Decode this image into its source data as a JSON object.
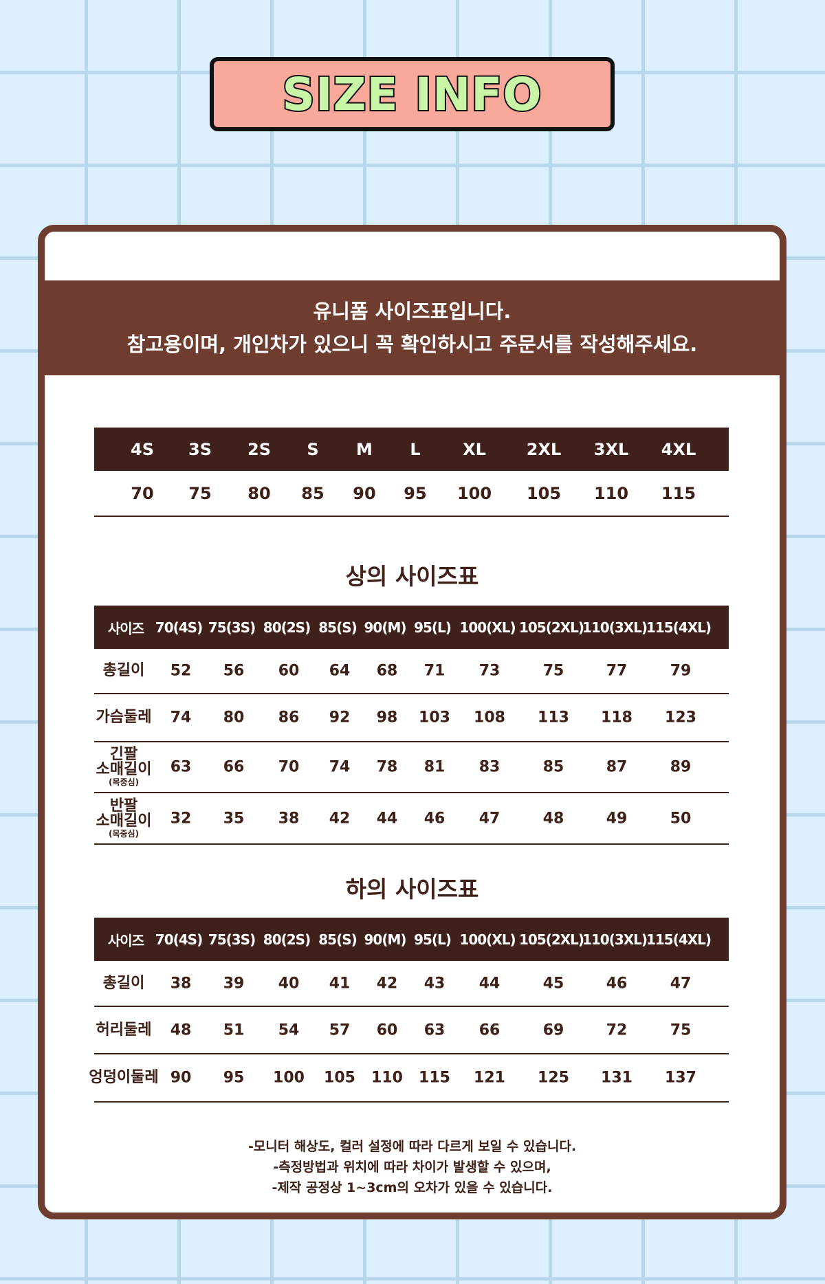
{
  "title": "SIZE INFO",
  "banner": {
    "line1": "유니폼 사이즈표입니다.",
    "line2": "참고용이며, 개인차가 있으니 꼭 확인하시고 주문서를 작성해주세요."
  },
  "size_map": {
    "labels": [
      "4S",
      "3S",
      "2S",
      "S",
      "M",
      "L",
      "XL",
      "2XL",
      "3XL",
      "4XL"
    ],
    "values": [
      "70",
      "75",
      "80",
      "85",
      "90",
      "95",
      "100",
      "105",
      "110",
      "115"
    ]
  },
  "top": {
    "heading": "상의 사이즈표",
    "header": [
      "사이즈",
      "70(4S)",
      "75(3S)",
      "80(2S)",
      "85(S)",
      "90(M)",
      "95(L)",
      "100(XL)",
      "105(2XL)",
      "110(3XL)",
      "115(4XL)"
    ],
    "rows": [
      {
        "label": "총길이",
        "sub": "",
        "values": [
          "52",
          "56",
          "60",
          "64",
          "68",
          "71",
          "73",
          "75",
          "77",
          "79"
        ]
      },
      {
        "label": "가슴둘레",
        "sub": "",
        "values": [
          "74",
          "80",
          "86",
          "92",
          "98",
          "103",
          "108",
          "113",
          "118",
          "123"
        ]
      },
      {
        "label": "긴팔\n소매길이",
        "sub": "(목중심)",
        "values": [
          "63",
          "66",
          "70",
          "74",
          "78",
          "81",
          "83",
          "85",
          "87",
          "89"
        ]
      },
      {
        "label": "반팔\n소매길이",
        "sub": "(목중심)",
        "values": [
          "32",
          "35",
          "38",
          "42",
          "44",
          "46",
          "47",
          "48",
          "49",
          "50"
        ]
      }
    ]
  },
  "bottom": {
    "heading": "하의 사이즈표",
    "header": [
      "사이즈",
      "70(4S)",
      "75(3S)",
      "80(2S)",
      "85(S)",
      "90(M)",
      "95(L)",
      "100(XL)",
      "105(2XL)",
      "110(3XL)",
      "115(4XL)"
    ],
    "rows": [
      {
        "label": "총길이",
        "sub": "",
        "values": [
          "38",
          "39",
          "40",
          "41",
          "42",
          "43",
          "44",
          "45",
          "46",
          "47"
        ]
      },
      {
        "label": "허리둘레",
        "sub": "",
        "values": [
          "48",
          "51",
          "54",
          "57",
          "60",
          "63",
          "66",
          "69",
          "72",
          "75"
        ]
      },
      {
        "label": "엉덩이둘레",
        "sub": "",
        "values": [
          "90",
          "95",
          "100",
          "105",
          "110",
          "115",
          "121",
          "125",
          "131",
          "137"
        ]
      }
    ]
  },
  "notes": [
    "-모니터 해상도, 컬러 설정에 따라 다르게 보일 수 있습니다.",
    "-측정방법과 위치에 따라 차이가 발생할 수 있으며,",
    "-제작 공정상 1~3cm의 오차가 있을 수 있습니다."
  ],
  "colors": {
    "brown": "#6e3d30",
    "dark": "#40201a",
    "pink": "#f9a99c",
    "green": "#c8f5a6",
    "grid": "#b9d7ea",
    "bg": "#dcefff"
  }
}
